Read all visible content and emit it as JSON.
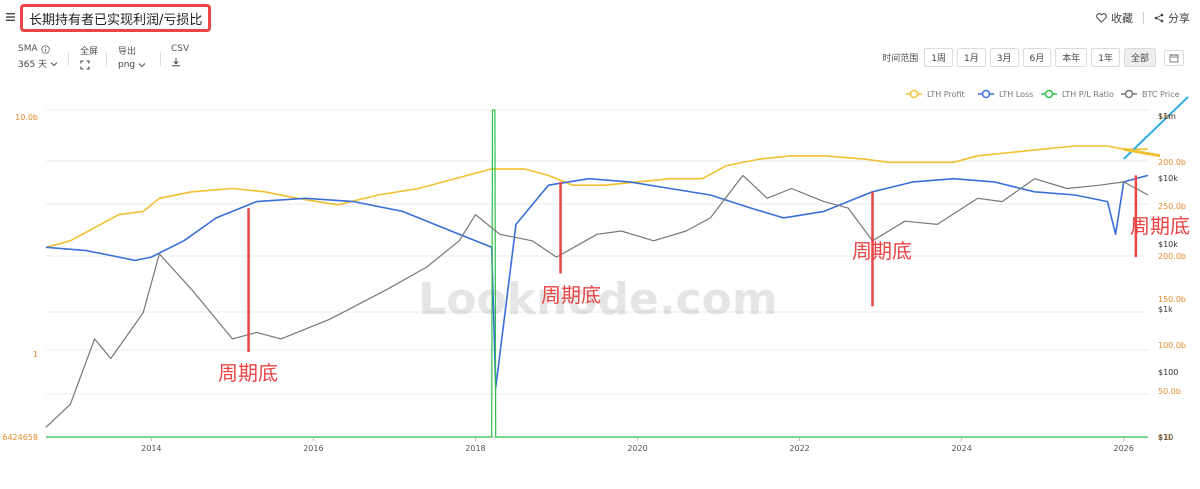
{
  "header": {
    "title": "长期持有者已实现利润/亏损比",
    "favorite_label": "收藏",
    "share_label": "分享"
  },
  "toolbar": {
    "sma_label": "SMA",
    "sma_value": "365 天",
    "fullscreen_label": "全屏",
    "export_label": "导出",
    "export_value": "png",
    "csv_label": "CSV",
    "range_label": "时间范围",
    "range_options": [
      "1周",
      "1月",
      "3月",
      "6月",
      "本年",
      "1年",
      "全部"
    ],
    "range_active": "全部"
  },
  "colors": {
    "lth_profit": "#f0c030",
    "lth_loss": "#3a6fd8",
    "lth_pl_ratio": "#2ec04a",
    "btc_price": "#777777",
    "annotation": "#e84545",
    "cyan_marker": "#29b0e8"
  },
  "icons": [
    "menu-icon",
    "info-icon",
    "fullscreen-icon",
    "download-icon",
    "chevron-down-icon",
    "heart-icon",
    "share-icon",
    "calendar-icon"
  ],
  "watermark": "Looknode.com",
  "annotations": [
    "周期底",
    "周期底",
    "周期底",
    "周期底"
  ],
  "chart_data": {
    "type": "line",
    "x_ticks": [
      "2014",
      "2016",
      "2018",
      "2020",
      "2022",
      "2024",
      "2026"
    ],
    "left_axis_labels": [
      "10.0b",
      "1",
      "6424658"
    ],
    "right_axis_orange_labels": [
      "1m",
      "200.0b",
      "250.0b",
      "200.0b",
      "150.0b",
      "100.0b",
      "50.0b",
      "0.0"
    ],
    "right_axis_black_labels": [
      "$1m",
      "$10k",
      "$10k",
      "$1k",
      "$100",
      "$10"
    ],
    "legend": [
      "LTH Profit",
      "LTH Loss",
      "LTH P/L Ratio",
      "BTC Price"
    ],
    "series": [
      {
        "name": "LTH Profit",
        "x": [
          2012.7,
          2013.0,
          2013.3,
          2013.6,
          2013.9,
          2014.1,
          2014.5,
          2015.0,
          2015.4,
          2015.8,
          2016.3,
          2016.8,
          2017.3,
          2017.9,
          2018.2,
          2018.6,
          2018.9,
          2019.2,
          2019.6,
          2020.0,
          2020.4,
          2020.8,
          2021.1,
          2021.5,
          2021.9,
          2022.3,
          2022.8,
          2023.1,
          2023.5,
          2023.9,
          2024.2,
          2024.6,
          2025.0,
          2025.4,
          2025.8,
          2026.0,
          2026.3
        ],
        "values": [
          58,
          60,
          64,
          68,
          69,
          73,
          75,
          76,
          75,
          73,
          71,
          74,
          76,
          80,
          82,
          82,
          80,
          77,
          77,
          78,
          79,
          79,
          83,
          85,
          86,
          86,
          85,
          84,
          84,
          84,
          86,
          87,
          88,
          89,
          89,
          88,
          88
        ]
      },
      {
        "name": "LTH Loss",
        "x": [
          2012.7,
          2013.2,
          2013.6,
          2013.8,
          2014.0,
          2014.4,
          2014.8,
          2015.3,
          2015.9,
          2016.5,
          2017.1,
          2017.7,
          2018.2,
          2018.25,
          2018.5,
          2018.9,
          2019.4,
          2019.9,
          2020.4,
          2020.9,
          2021.4,
          2021.8,
          2022.3,
          2022.9,
          2023.4,
          2023.9,
          2024.4,
          2024.9,
          2025.4,
          2025.8,
          2025.9,
          2026.0,
          2026.3
        ],
        "values": [
          58,
          57,
          55,
          54,
          55,
          60,
          67,
          72,
          73,
          72,
          69,
          63,
          58,
          15,
          65,
          77,
          79,
          78,
          76,
          74,
          70,
          67,
          69,
          75,
          78,
          79,
          78,
          75,
          74,
          72,
          62,
          78,
          80
        ]
      },
      {
        "name": "LTH P/L Ratio",
        "x": [
          2012.7,
          2018.2,
          2018.21,
          2018.24,
          2018.25,
          2026.3
        ],
        "values": [
          0,
          0,
          100,
          100,
          0,
          0
        ]
      },
      {
        "name": "BTC Price",
        "x": [
          2012.7,
          2013.0,
          2013.3,
          2013.5,
          2013.9,
          2014.1,
          2014.5,
          2015.0,
          2015.3,
          2015.6,
          2016.2,
          2016.9,
          2017.4,
          2017.8,
          2018.0,
          2018.3,
          2018.7,
          2019.0,
          2019.5,
          2019.8,
          2020.2,
          2020.6,
          2020.9,
          2021.3,
          2021.6,
          2021.9,
          2022.3,
          2022.6,
          2022.9,
          2023.3,
          2023.7,
          2024.2,
          2024.5,
          2024.9,
          2025.3,
          2025.7,
          2026.0,
          2026.3
        ],
        "values": [
          3,
          10,
          30,
          24,
          38,
          56,
          45,
          30,
          32,
          30,
          36,
          45,
          52,
          60,
          68,
          62,
          60,
          55,
          62,
          63,
          60,
          63,
          67,
          80,
          73,
          76,
          72,
          70,
          60,
          66,
          65,
          73,
          72,
          79,
          76,
          77,
          78,
          74
        ]
      }
    ],
    "annotation_x": [
      2015.2,
      2019.05,
      2022.9,
      2026.15
    ],
    "cycle_bottom_label": "周期底"
  }
}
